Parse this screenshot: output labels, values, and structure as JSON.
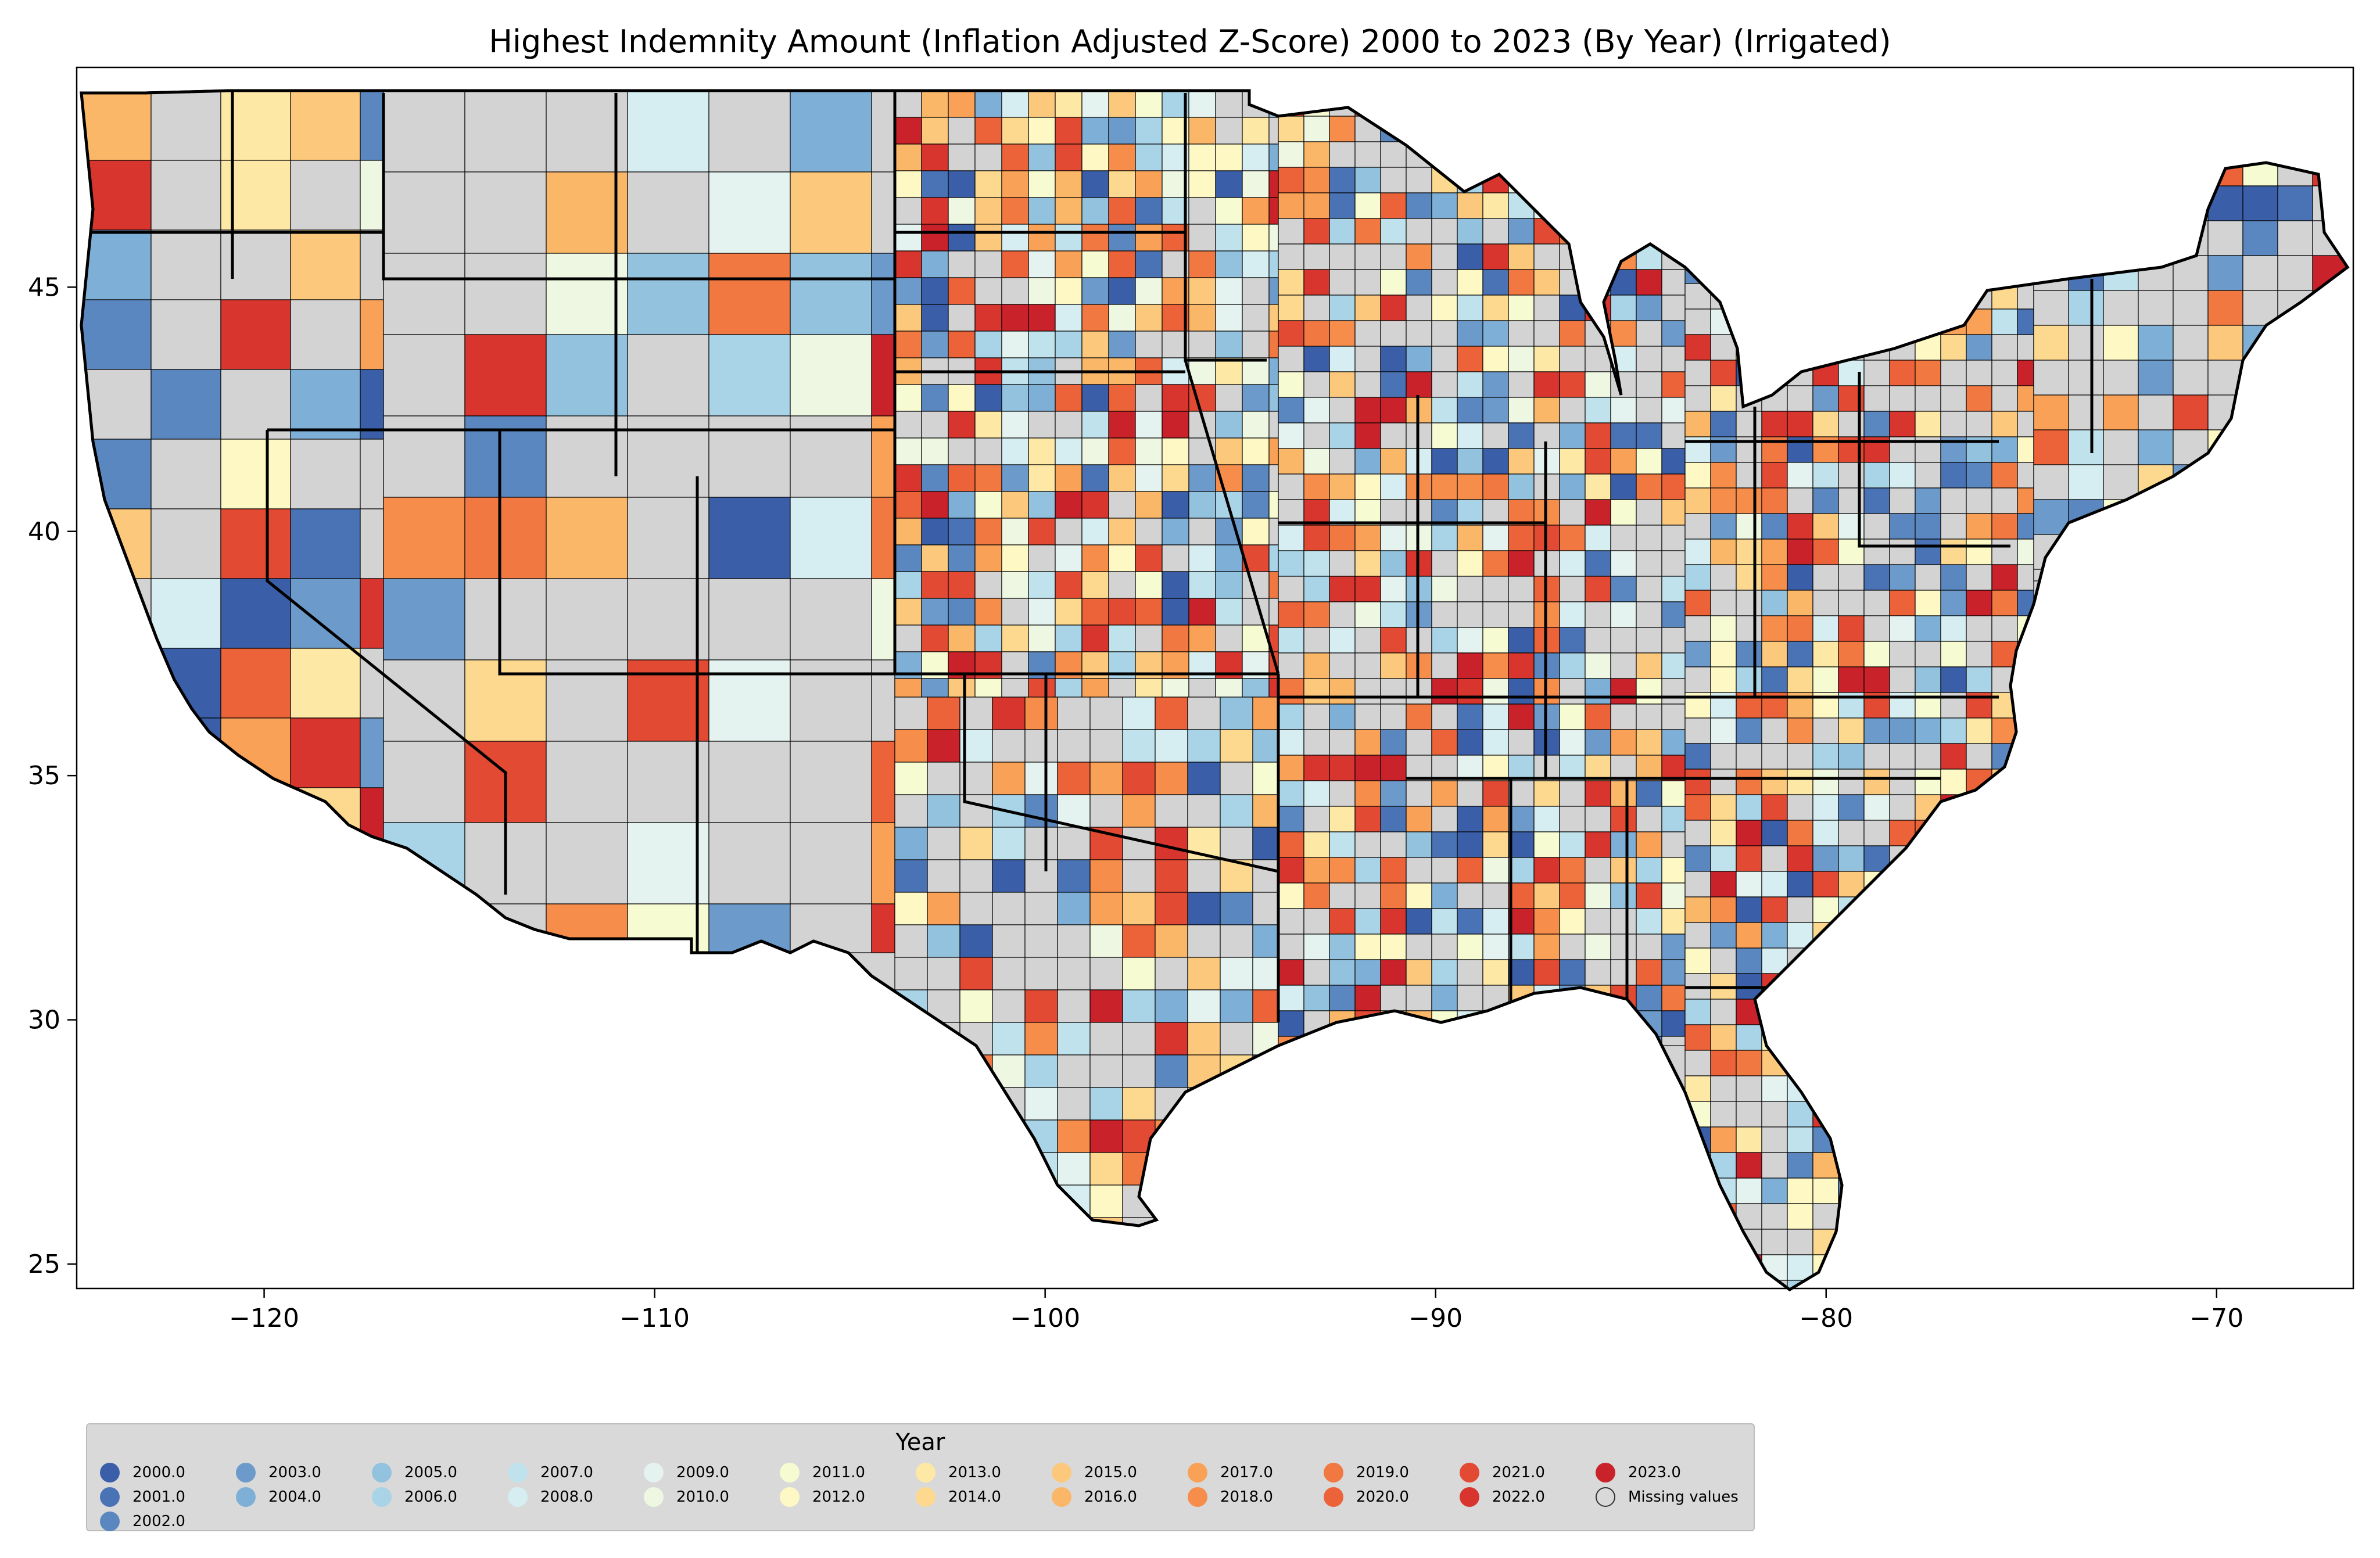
{
  "map": {
    "title": "Highest Indemnity Amount  (Inflation Adjusted Z-Score) 2000 to 2023 (By Year) (Irrigated)",
    "x_range": [
      -124.8,
      -66.5
    ],
    "y_range": [
      24.5,
      49.5
    ],
    "x_ticks": [
      "−120",
      "−110",
      "−100",
      "−90",
      "−80",
      "−70"
    ],
    "x_tick_values": [
      -120,
      -110,
      -100,
      -90,
      -80,
      -70
    ],
    "y_ticks": [
      "25",
      "30",
      "35",
      "40",
      "45"
    ],
    "y_tick_values": [
      25,
      30,
      35,
      40,
      45
    ],
    "missing_color": "#d3d3d3",
    "border_color": "#000000"
  },
  "legend": {
    "title": "Year",
    "items": [
      {
        "label": "2000.0",
        "color": "#3a5fa8"
      },
      {
        "label": "2001.0",
        "color": "#4a73b5"
      },
      {
        "label": "2002.0",
        "color": "#5b87c0"
      },
      {
        "label": "2003.0",
        "color": "#6c9bcb"
      },
      {
        "label": "2004.0",
        "color": "#7eafd6"
      },
      {
        "label": "2005.0",
        "color": "#93c2df"
      },
      {
        "label": "2006.0",
        "color": "#a9d3e6"
      },
      {
        "label": "2007.0",
        "color": "#c0e2ec"
      },
      {
        "label": "2008.0",
        "color": "#d6eef1"
      },
      {
        "label": "2009.0",
        "color": "#e4f3ef"
      },
      {
        "label": "2010.0",
        "color": "#eef7e1"
      },
      {
        "label": "2011.0",
        "color": "#f7fbd2"
      },
      {
        "label": "2012.0",
        "color": "#fdf8c4"
      },
      {
        "label": "2013.0",
        "color": "#fee8a6"
      },
      {
        "label": "2014.0",
        "color": "#fdd990"
      },
      {
        "label": "2015.0",
        "color": "#fcc87c"
      },
      {
        "label": "2016.0",
        "color": "#fbb768"
      },
      {
        "label": "2017.0",
        "color": "#f9a257"
      },
      {
        "label": "2018.0",
        "color": "#f68d4b"
      },
      {
        "label": "2019.0",
        "color": "#f27841"
      },
      {
        "label": "2020.0",
        "color": "#ec6239"
      },
      {
        "label": "2021.0",
        "color": "#e34a33"
      },
      {
        "label": "2022.0",
        "color": "#d8352e"
      },
      {
        "label": "2023.0",
        "color": "#c9222a"
      },
      {
        "label": "Missing values",
        "color": "#d3d3d3"
      }
    ]
  }
}
